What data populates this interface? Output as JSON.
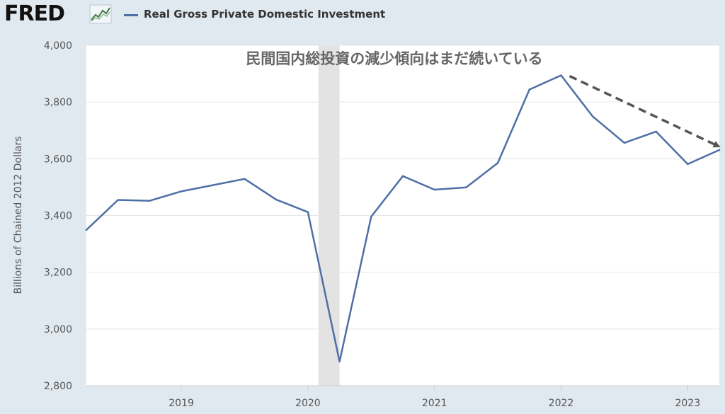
{
  "header": {
    "logo_text": "FRED",
    "legend_label": "Real Gross Private Domestic Investment"
  },
  "chart_data": {
    "type": "line",
    "title": "",
    "annotation": "民間国内総投資の減少傾向はまだ続いている",
    "ylabel": "Billions of Chained 2012 Dollars",
    "ylim": [
      2800,
      4000
    ],
    "yticks": [
      2800,
      3000,
      3200,
      3400,
      3600,
      3800,
      4000
    ],
    "ytick_labels": [
      "2,800",
      "3,000",
      "3,200",
      "3,400",
      "3,600",
      "3,800",
      "4,000"
    ],
    "xlim": [
      2018.25,
      2023.25
    ],
    "xticks": [
      2019,
      2020,
      2021,
      2022,
      2023
    ],
    "xtick_labels": [
      "2019",
      "2020",
      "2021",
      "2022",
      "2023"
    ],
    "recession": [
      2020.0833,
      2020.25
    ],
    "grid": "horizontal",
    "colors": {
      "line": "#4e6fa5",
      "arrow": "#555555",
      "recession": "#e3e3e3"
    },
    "series": [
      {
        "name": "Real Gross Private Domestic Investment",
        "x": [
          2018.25,
          2018.5,
          2018.75,
          2019.0,
          2019.25,
          2019.5,
          2019.75,
          2020.0,
          2020.25,
          2020.5,
          2020.75,
          2021.0,
          2021.25,
          2021.5,
          2021.75,
          2022.0,
          2022.25,
          2022.5,
          2022.75,
          2023.0,
          2023.25
        ],
        "y": [
          3349,
          3455,
          3452,
          3485,
          3507,
          3529,
          3456,
          3412,
          2885,
          3396,
          3539,
          3491,
          3499,
          3585,
          3844,
          3894,
          3749,
          3656,
          3696,
          3581,
          3631
        ]
      }
    ],
    "trend_arrow": {
      "from": [
        2022.0,
        3894
      ],
      "to": [
        2023.25,
        3645
      ]
    }
  }
}
